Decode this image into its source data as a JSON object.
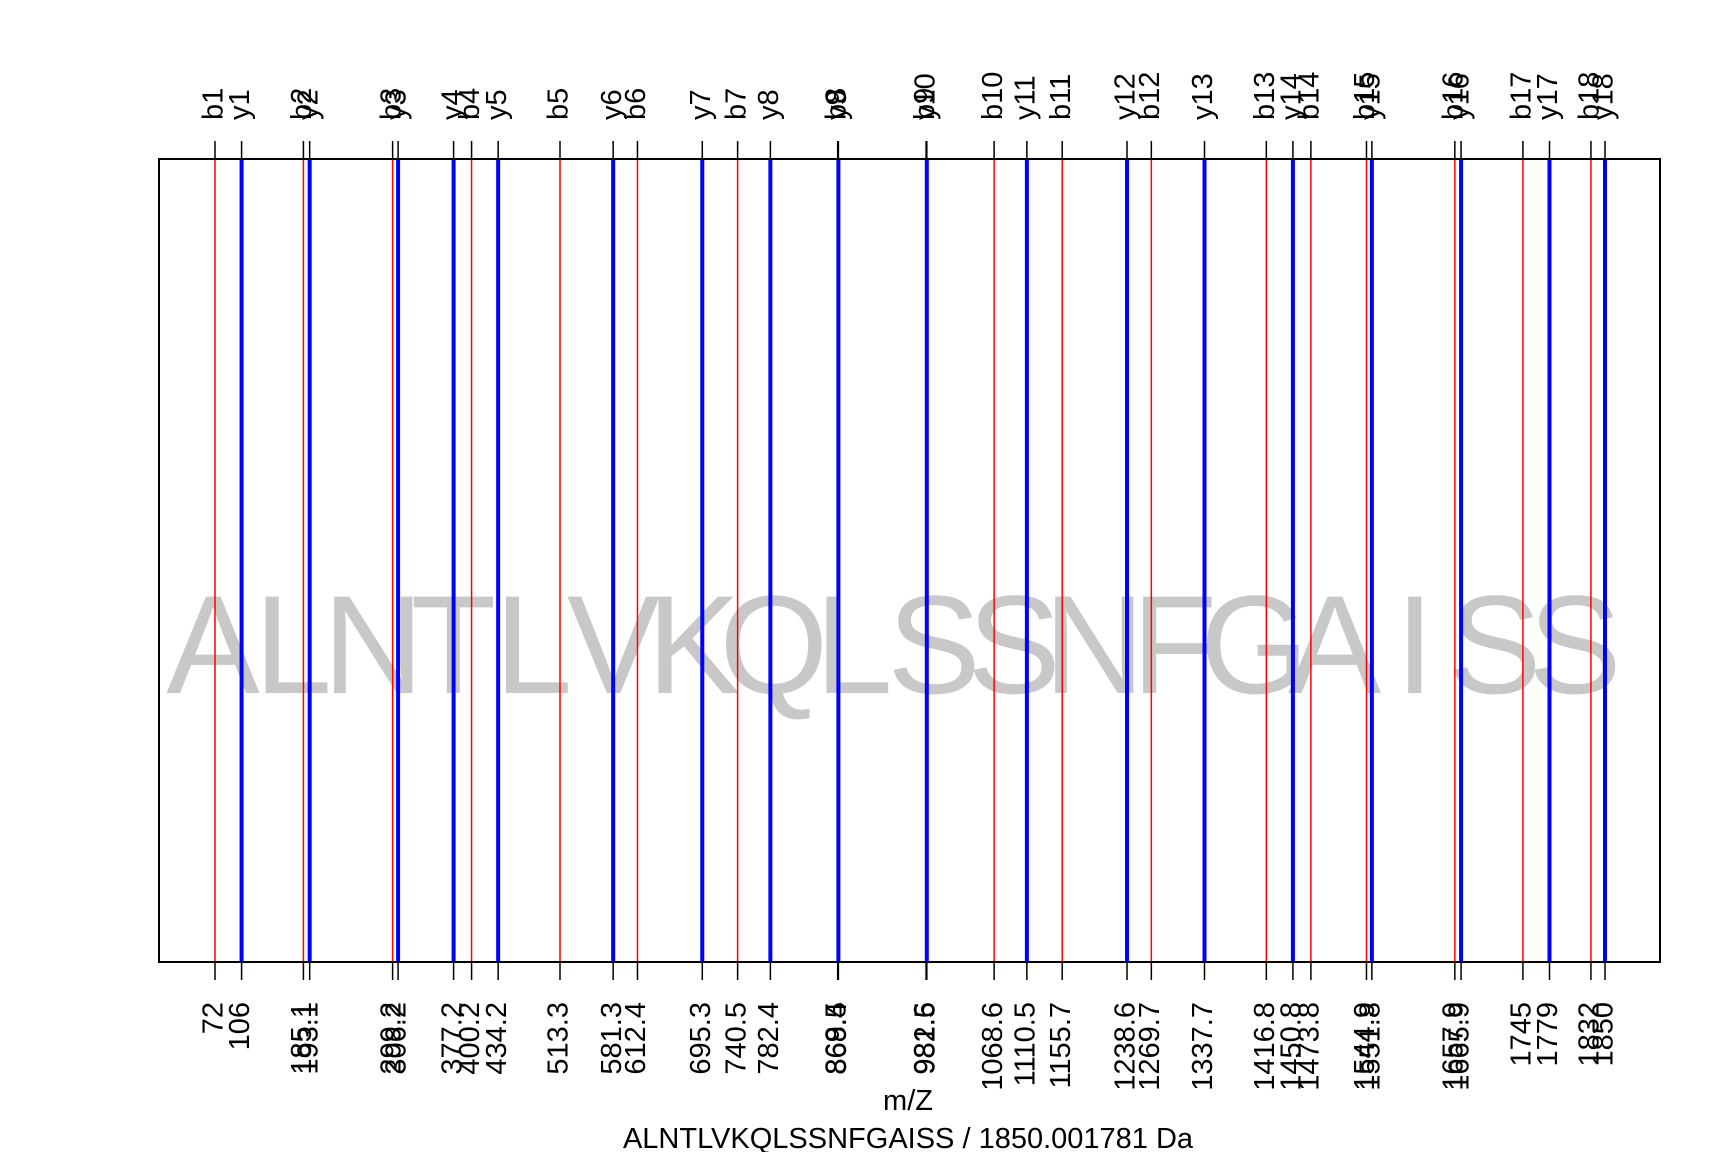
{
  "chart_data": {
    "type": "bar",
    "title": "",
    "xlabel": "m/Z",
    "caption": "ALNTLVKQLSSNFGAISS / 1850.001781 Da",
    "peptide": "ALNTLVKQLSSNFGAISS",
    "xlim": [
      72,
      1850
    ],
    "colors": {
      "b": "#ff0000",
      "y": "#0000ff",
      "sequence": "#c8c8c8",
      "frame": "#000000"
    },
    "series": [
      {
        "name": "b",
        "ions": [
          {
            "label": "b1",
            "mz": 72,
            "tick": "72"
          },
          {
            "label": "b2",
            "mz": 185.1,
            "tick": "185.1"
          },
          {
            "label": "b3",
            "mz": 299.2,
            "tick": "299.2"
          },
          {
            "label": "b4",
            "mz": 400.2,
            "tick": "400.2"
          },
          {
            "label": "b5",
            "mz": 513.3,
            "tick": "513.3"
          },
          {
            "label": "b6",
            "mz": 612.4,
            "tick": "612.4"
          },
          {
            "label": "b7",
            "mz": 740.5,
            "tick": "740.5"
          },
          {
            "label": "b8",
            "mz": 868.5,
            "tick": "868.5"
          },
          {
            "label": "b9",
            "mz": 981.6,
            "tick": "981.6"
          },
          {
            "label": "b10",
            "mz": 1068.6,
            "tick": "1068.6"
          },
          {
            "label": "b11",
            "mz": 1155.7,
            "tick": "1155.7"
          },
          {
            "label": "b12",
            "mz": 1269.7,
            "tick": "1269.7"
          },
          {
            "label": "b13",
            "mz": 1416.8,
            "tick": "1416.8"
          },
          {
            "label": "b14",
            "mz": 1473.8,
            "tick": "1473.8"
          },
          {
            "label": "b15",
            "mz": 1544.9,
            "tick": "1544.9"
          },
          {
            "label": "b16",
            "mz": 1657.9,
            "tick": "1657.9"
          },
          {
            "label": "b17",
            "mz": 1745,
            "tick": "1745"
          },
          {
            "label": "b18",
            "mz": 1832,
            "tick": "1832"
          }
        ]
      },
      {
        "name": "y",
        "ions": [
          {
            "label": "y1",
            "mz": 106,
            "tick": "106"
          },
          {
            "label": "y2",
            "mz": 193.1,
            "tick": "193.1"
          },
          {
            "label": "y3",
            "mz": 306.2,
            "tick": "306.2"
          },
          {
            "label": "y4",
            "mz": 377.2,
            "tick": "377.2"
          },
          {
            "label": "y5",
            "mz": 434.2,
            "tick": "434.2"
          },
          {
            "label": "y6",
            "mz": 581.3,
            "tick": "581.3"
          },
          {
            "label": "y7",
            "mz": 695.3,
            "tick": "695.3"
          },
          {
            "label": "y8",
            "mz": 782.4,
            "tick": "782.4"
          },
          {
            "label": "y9",
            "mz": 869.4,
            "tick": "869.4"
          },
          {
            "label": "y10",
            "mz": 982.5,
            "tick": "982.5"
          },
          {
            "label": "y11",
            "mz": 1110.5,
            "tick": "1110.5"
          },
          {
            "label": "y12",
            "mz": 1238.6,
            "tick": "1238.6"
          },
          {
            "label": "y13",
            "mz": 1337.7,
            "tick": "1337.7"
          },
          {
            "label": "y14",
            "mz": 1450.8,
            "tick": "1450.8"
          },
          {
            "label": "y15",
            "mz": 1551.8,
            "tick": "1551.8"
          },
          {
            "label": "y16",
            "mz": 1665.9,
            "tick": "1665.9"
          },
          {
            "label": "y17",
            "mz": 1779,
            "tick": "1779"
          },
          {
            "label": "y18",
            "mz": 1850,
            "tick": "1850"
          }
        ]
      }
    ]
  }
}
